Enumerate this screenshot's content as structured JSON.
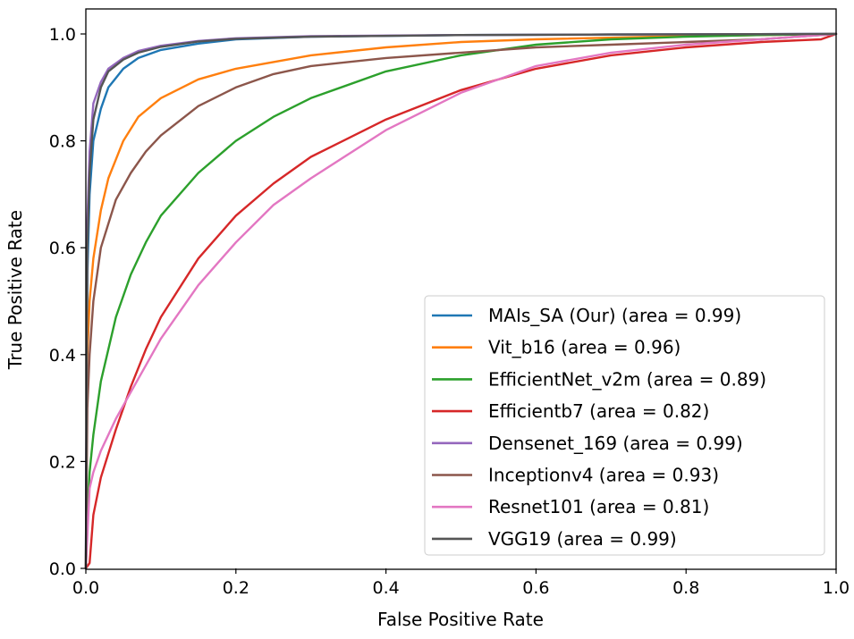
{
  "chart_data": {
    "type": "line",
    "title": "",
    "xlabel": "False Positive Rate",
    "ylabel": "True Positive Rate",
    "xlim": [
      0.0,
      1.0
    ],
    "ylim": [
      0.0,
      1.0
    ],
    "xticks": [
      "0.0",
      "0.2",
      "0.4",
      "0.6",
      "0.8",
      "1.0"
    ],
    "yticks": [
      "0.0",
      "0.2",
      "0.4",
      "0.6",
      "0.8",
      "1.0"
    ],
    "grid": false,
    "legend_position": "lower-right",
    "series": [
      {
        "name": "MAIs_SA (Our) (area = 0.99)",
        "color": "#1f77b4",
        "x": [
          0,
          0.002,
          0.005,
          0.01,
          0.02,
          0.03,
          0.05,
          0.07,
          0.1,
          0.15,
          0.2,
          0.3,
          0.5,
          0.7,
          1.0
        ],
        "y": [
          0,
          0.55,
          0.7,
          0.8,
          0.86,
          0.9,
          0.935,
          0.955,
          0.97,
          0.982,
          0.99,
          0.995,
          0.998,
          0.999,
          1.0
        ]
      },
      {
        "name": "Vit_b16 (area = 0.96)",
        "color": "#ff7f0e",
        "x": [
          0,
          0.002,
          0.005,
          0.01,
          0.02,
          0.03,
          0.05,
          0.07,
          0.1,
          0.15,
          0.2,
          0.3,
          0.4,
          0.5,
          0.6,
          0.8,
          1.0
        ],
        "y": [
          0,
          0.4,
          0.5,
          0.58,
          0.67,
          0.73,
          0.8,
          0.845,
          0.88,
          0.915,
          0.935,
          0.96,
          0.975,
          0.985,
          0.99,
          0.996,
          1.0
        ]
      },
      {
        "name": "EfficientNet_v2m (area = 0.89)",
        "color": "#2ca02c",
        "x": [
          0,
          0.002,
          0.005,
          0.01,
          0.02,
          0.04,
          0.06,
          0.08,
          0.1,
          0.15,
          0.2,
          0.25,
          0.3,
          0.4,
          0.5,
          0.6,
          0.7,
          0.8,
          0.9,
          1.0
        ],
        "y": [
          0,
          0.1,
          0.18,
          0.25,
          0.35,
          0.47,
          0.55,
          0.61,
          0.66,
          0.74,
          0.8,
          0.845,
          0.88,
          0.93,
          0.96,
          0.98,
          0.99,
          0.995,
          0.998,
          1.0
        ]
      },
      {
        "name": "Efficientb7 (area = 0.82)",
        "color": "#d62728",
        "x": [
          0,
          0.005,
          0.01,
          0.02,
          0.04,
          0.06,
          0.08,
          0.1,
          0.15,
          0.2,
          0.25,
          0.3,
          0.4,
          0.5,
          0.6,
          0.7,
          0.8,
          0.9,
          0.98,
          1.0
        ],
        "y": [
          0,
          0.01,
          0.1,
          0.17,
          0.26,
          0.34,
          0.41,
          0.47,
          0.58,
          0.66,
          0.72,
          0.77,
          0.84,
          0.895,
          0.935,
          0.96,
          0.975,
          0.985,
          0.99,
          1.0
        ]
      },
      {
        "name": "Densenet_169 (area = 0.99)",
        "color": "#9467bd",
        "x": [
          0,
          0.002,
          0.005,
          0.01,
          0.02,
          0.03,
          0.05,
          0.07,
          0.1,
          0.15,
          0.2,
          0.3,
          0.5,
          0.7,
          1.0
        ],
        "y": [
          0,
          0.65,
          0.78,
          0.87,
          0.91,
          0.935,
          0.955,
          0.968,
          0.978,
          0.987,
          0.992,
          0.996,
          0.998,
          0.999,
          1.0
        ]
      },
      {
        "name": "Inceptionv4 (area = 0.93)",
        "color": "#8c564b",
        "x": [
          0,
          0.002,
          0.005,
          0.01,
          0.02,
          0.04,
          0.06,
          0.08,
          0.1,
          0.15,
          0.2,
          0.25,
          0.3,
          0.4,
          0.5,
          0.6,
          0.7,
          0.8,
          0.9,
          1.0
        ],
        "y": [
          0,
          0.3,
          0.4,
          0.5,
          0.6,
          0.69,
          0.74,
          0.78,
          0.81,
          0.865,
          0.9,
          0.925,
          0.94,
          0.955,
          0.965,
          0.975,
          0.98,
          0.985,
          0.99,
          1.0
        ]
      },
      {
        "name": "Resnet101 (area = 0.81)",
        "color": "#e377c2",
        "x": [
          0,
          0.005,
          0.01,
          0.02,
          0.04,
          0.06,
          0.08,
          0.1,
          0.15,
          0.2,
          0.25,
          0.3,
          0.4,
          0.5,
          0.6,
          0.7,
          0.8,
          0.9,
          0.95,
          1.0
        ],
        "y": [
          0,
          0.15,
          0.18,
          0.22,
          0.28,
          0.33,
          0.38,
          0.43,
          0.53,
          0.61,
          0.68,
          0.73,
          0.82,
          0.89,
          0.94,
          0.965,
          0.98,
          0.99,
          0.995,
          1.0
        ]
      },
      {
        "name": "VGG19 (area = 0.99)",
        "color": "#555555",
        "x": [
          0,
          0.002,
          0.005,
          0.01,
          0.02,
          0.03,
          0.05,
          0.07,
          0.1,
          0.15,
          0.2,
          0.3,
          0.5,
          0.7,
          1.0
        ],
        "y": [
          0,
          0.6,
          0.74,
          0.84,
          0.9,
          0.93,
          0.952,
          0.965,
          0.976,
          0.986,
          0.991,
          0.995,
          0.998,
          0.999,
          1.0
        ]
      }
    ]
  }
}
